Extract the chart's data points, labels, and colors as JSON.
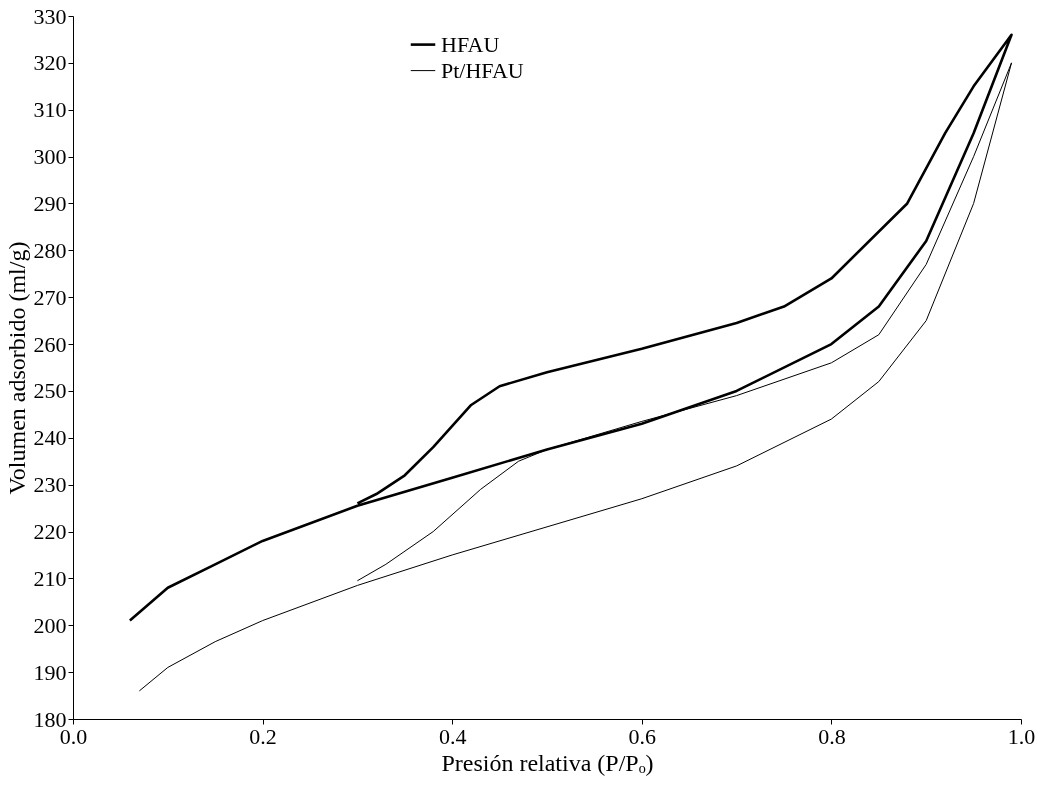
{
  "chart_data": {
    "type": "line",
    "xlabel": "Presión relativa (P/Pₒ)",
    "ylabel": "Volumen adsorbido (ml/g)",
    "xlim": [
      0,
      1
    ],
    "ylim": [
      180,
      330
    ],
    "xticks": [
      {
        "value": 0,
        "label": "0.0"
      },
      {
        "value": 0.2,
        "label": "0.2"
      },
      {
        "value": 0.4,
        "label": "0.4"
      },
      {
        "value": 0.6,
        "label": "0.6"
      },
      {
        "value": 0.8,
        "label": "0.8"
      },
      {
        "value": 1,
        "label": "1.0"
      }
    ],
    "yticks": [
      180,
      190,
      200,
      210,
      220,
      230,
      240,
      250,
      260,
      270,
      280,
      290,
      300,
      310,
      320,
      330
    ],
    "grid": false,
    "legend": "top",
    "marker": "none",
    "line_style": "solid",
    "series": [
      {
        "name": "HFAU",
        "color": "#000000",
        "x": [
          0.06,
          0.1,
          0.15,
          0.2,
          0.3,
          0.4,
          0.5,
          0.6,
          0.7,
          0.8,
          0.85,
          0.9,
          0.95,
          0.99,
          0.95,
          0.92,
          0.88,
          0.8,
          0.75,
          0.7,
          0.6,
          0.5,
          0.45,
          0.42,
          0.38,
          0.35,
          0.32,
          0.3
        ],
        "values": [
          201,
          208,
          213,
          218,
          225.5,
          231.5,
          237.5,
          243,
          250,
          260,
          268,
          282,
          305,
          326,
          315,
          305,
          290,
          274,
          268,
          264.5,
          259,
          254,
          251,
          247,
          238,
          232,
          228,
          226
        ]
      },
      {
        "name": "Pt/HFAU",
        "color": "#000000",
        "x": [
          0.07,
          0.1,
          0.15,
          0.2,
          0.3,
          0.4,
          0.5,
          0.6,
          0.7,
          0.8,
          0.85,
          0.9,
          0.95,
          0.99,
          0.95,
          0.9,
          0.85,
          0.8,
          0.7,
          0.6,
          0.5,
          0.47,
          0.43,
          0.38,
          0.33,
          0.3
        ],
        "values": [
          186,
          191,
          196.5,
          201,
          208.5,
          215,
          221,
          227,
          234,
          244,
          252,
          265,
          290,
          320,
          300,
          277,
          262,
          256,
          249,
          243.5,
          237.5,
          235,
          229,
          220,
          213,
          209.5
        ]
      }
    ]
  }
}
